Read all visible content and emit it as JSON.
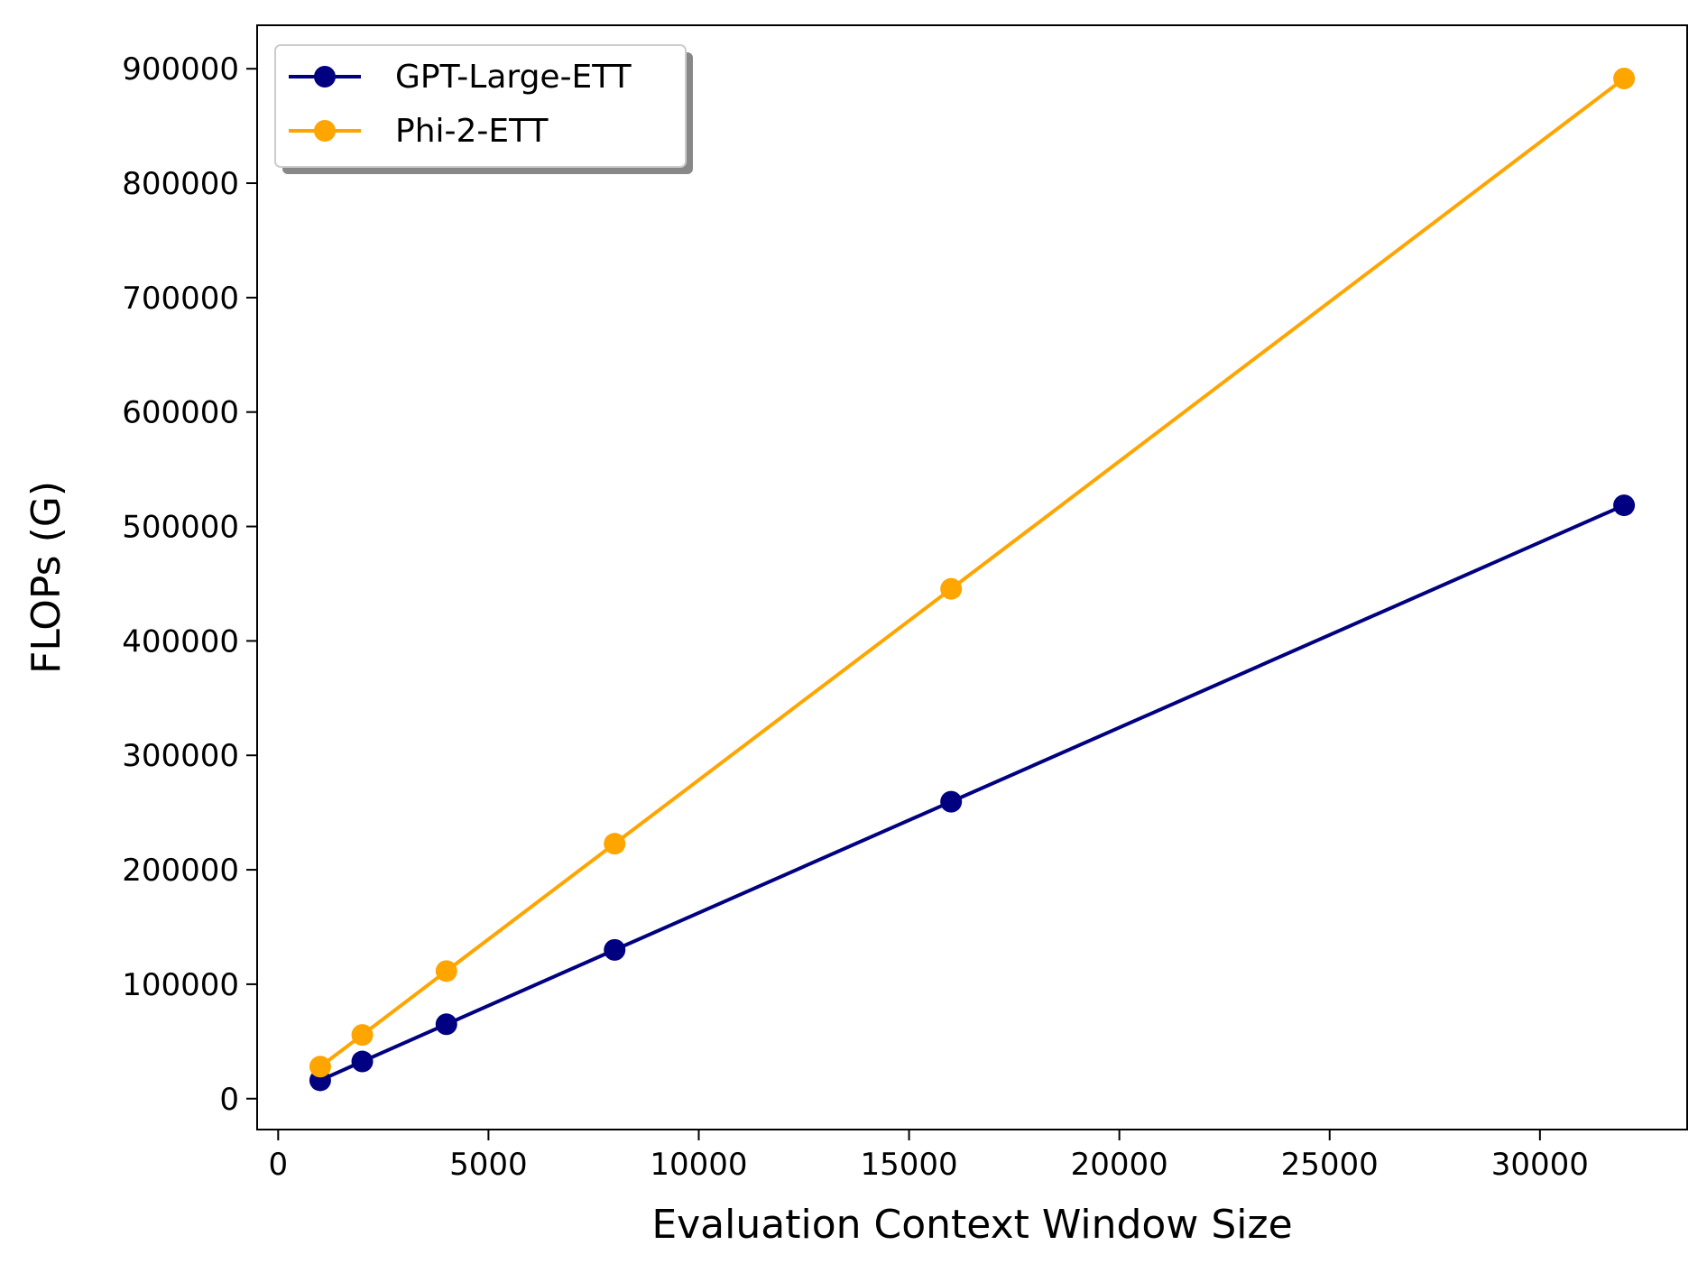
{
  "chart_data": {
    "type": "line",
    "title": "",
    "xlabel": "Evaluation Context Window Size",
    "ylabel": "FLOPs (G)",
    "xlim": [
      -500,
      33500
    ],
    "ylim": [
      -27000,
      938000
    ],
    "x_ticks": [
      "0",
      "5000",
      "10000",
      "15000",
      "20000",
      "25000",
      "30000"
    ],
    "y_ticks": [
      "0",
      "100000",
      "200000",
      "300000",
      "400000",
      "500000",
      "600000",
      "700000",
      "800000",
      "900000"
    ],
    "x": [
      1000,
      2000,
      4000,
      8000,
      16000,
      32000
    ],
    "series": [
      {
        "name": "GPT-Large-ETT",
        "color": "#000080",
        "values": [
          16000,
          32500,
          65000,
          130000,
          259500,
          518500
        ]
      },
      {
        "name": "Phi-2-ETT",
        "color": "#FFA500",
        "values": [
          28000,
          55700,
          111500,
          222800,
          445500,
          891500
        ]
      }
    ],
    "legend": "top-left",
    "grid": false
  }
}
